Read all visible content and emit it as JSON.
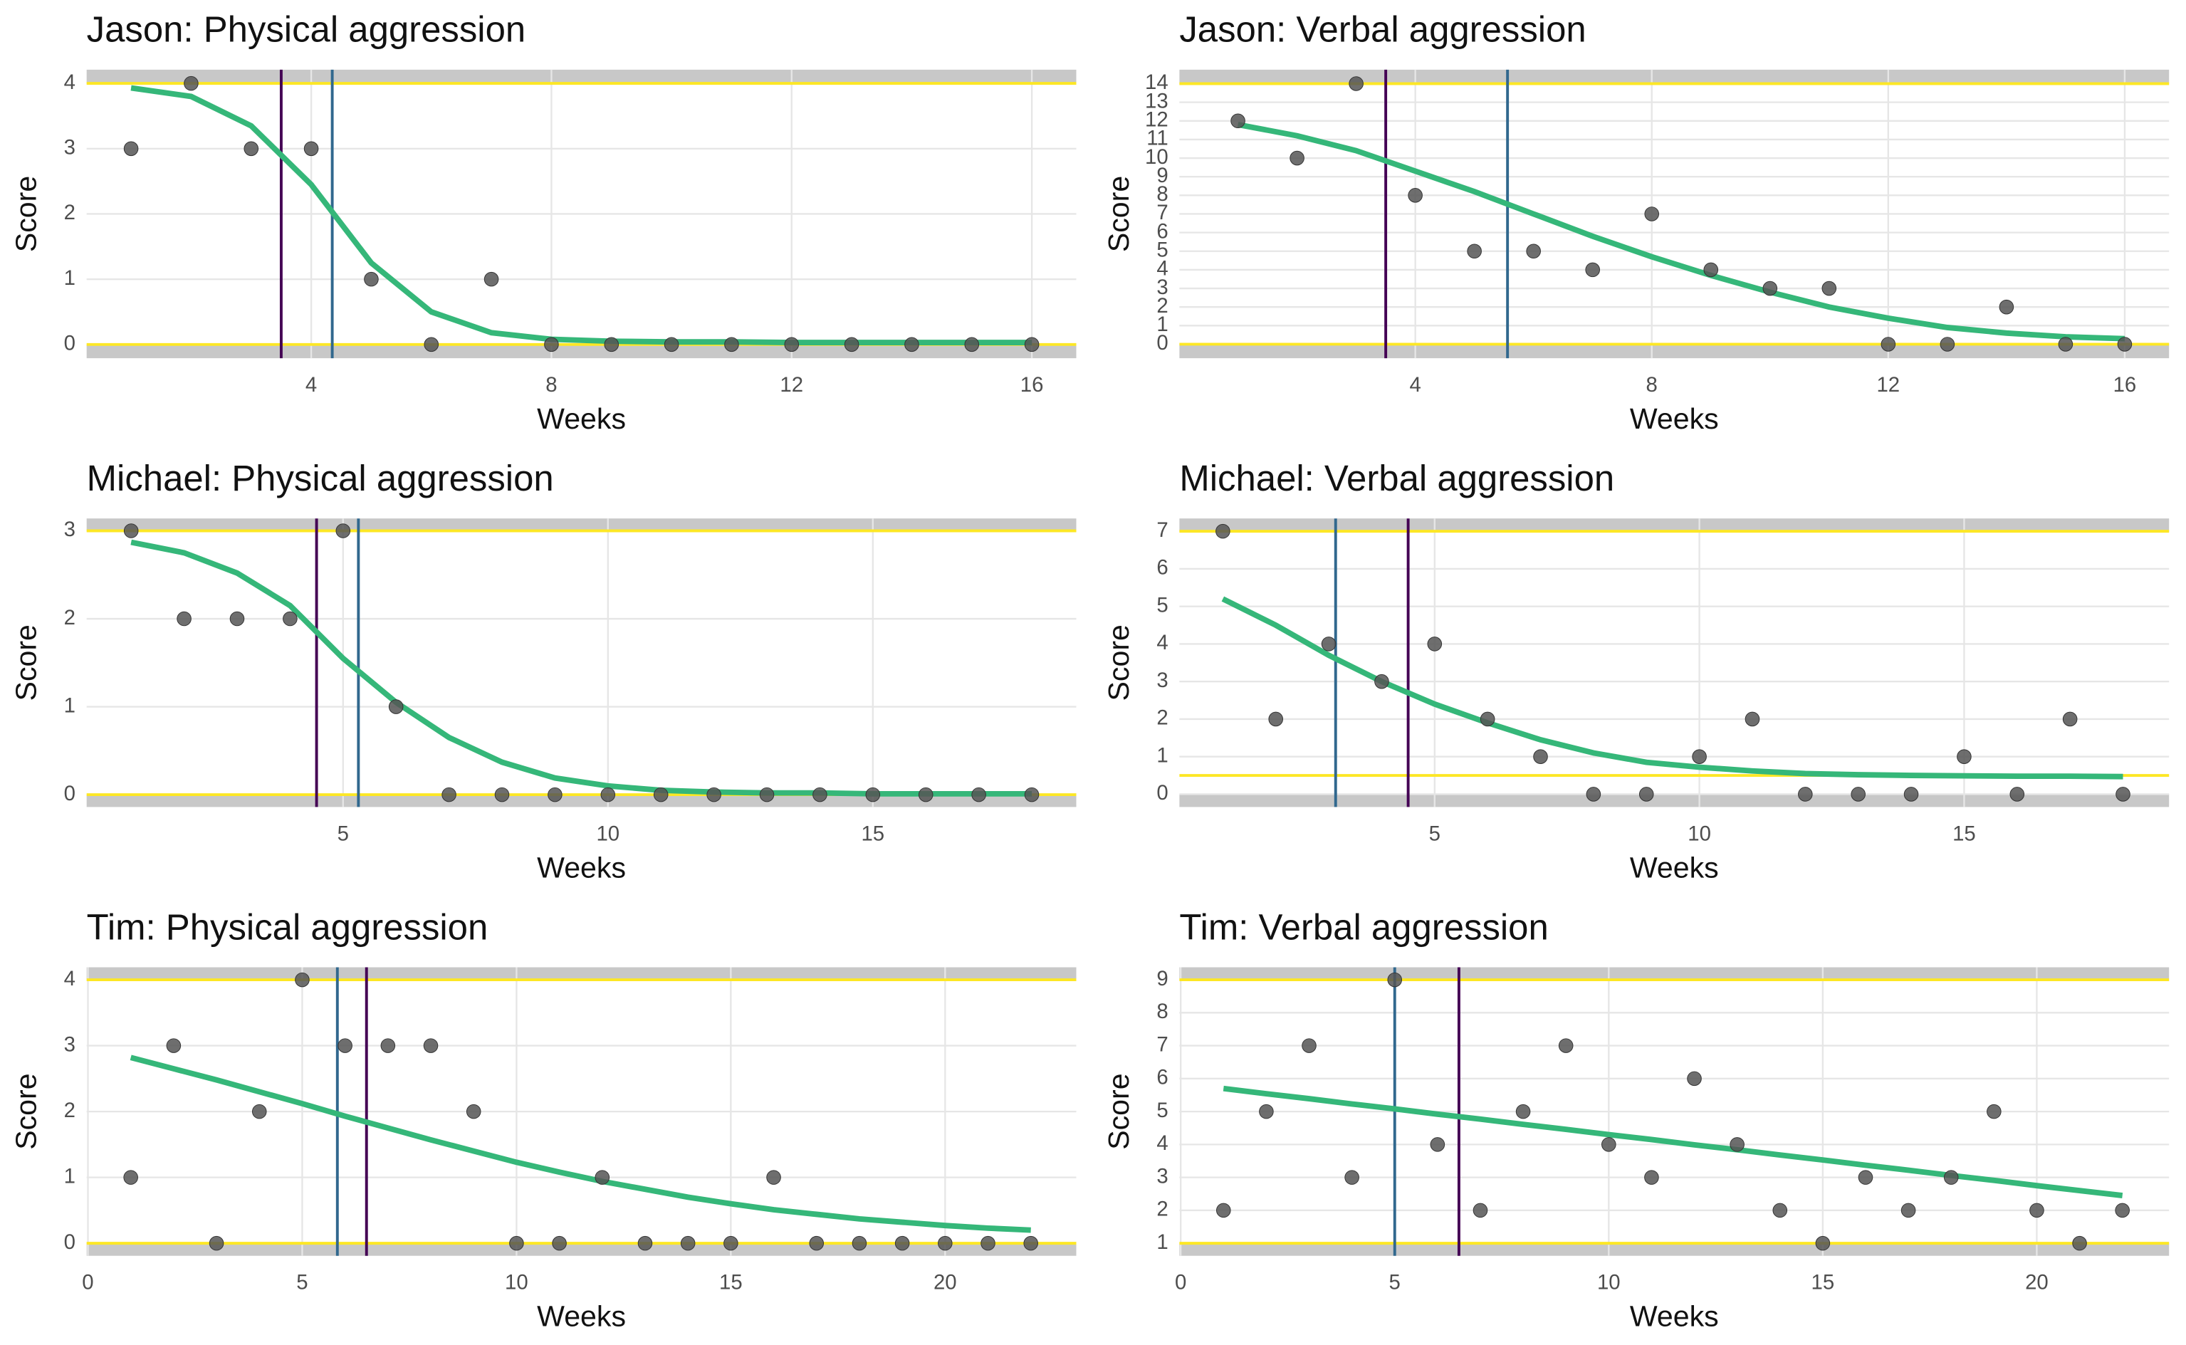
{
  "chart_data": [
    {
      "type": "scatter",
      "title": "Jason: Physical aggression",
      "xlabel": "Weeks",
      "ylabel": "Score",
      "xlim": [
        0.26,
        16.74
      ],
      "xticks": [
        4,
        8,
        12,
        16
      ],
      "ylim": [
        -0.21,
        4.21
      ],
      "yticks": [
        0,
        1,
        2,
        3,
        4
      ],
      "grid": true,
      "points": {
        "color": "#555555",
        "x": [
          1,
          2,
          3,
          4,
          5,
          6,
          7,
          8,
          9,
          10,
          11,
          12,
          13,
          14,
          15,
          16
        ],
        "values": [
          3,
          4,
          3,
          3,
          1,
          0,
          1,
          0,
          0,
          0,
          0,
          0,
          0,
          0,
          0,
          0
        ]
      },
      "fit": {
        "color": "#35b779",
        "x": [
          1,
          2,
          3,
          4,
          5,
          6,
          7,
          8,
          9,
          10,
          11,
          12,
          13,
          14,
          15,
          16
        ],
        "values": [
          3.93,
          3.8,
          3.35,
          2.45,
          1.25,
          0.5,
          0.18,
          0.08,
          0.05,
          0.04,
          0.04,
          0.03,
          0.03,
          0.03,
          0.03,
          0.03
        ]
      },
      "vlines": [
        {
          "x": 3.5,
          "color": "#440154"
        },
        {
          "x": 4.35,
          "color": "#31688e"
        }
      ],
      "hlines": [
        {
          "y": 4,
          "color": "#fde725"
        },
        {
          "y": 0,
          "color": "#fde725"
        }
      ],
      "bands": [
        [
          4,
          4.21
        ],
        [
          -0.21,
          0
        ]
      ]
    },
    {
      "type": "scatter",
      "title": "Jason: Verbal aggression",
      "xlabel": "Weeks",
      "ylabel": "Score",
      "xlim": [
        0.01,
        16.75
      ],
      "xticks": [
        4,
        8,
        12,
        16
      ],
      "ylim": [
        -0.75,
        14.75
      ],
      "yticks": [
        0,
        1,
        2,
        3,
        4,
        5,
        6,
        7,
        8,
        9,
        10,
        11,
        12,
        13,
        14
      ],
      "grid": true,
      "points": {
        "color": "#555555",
        "x": [
          1,
          2,
          3,
          4,
          5,
          6,
          7,
          8,
          9,
          10,
          11,
          12,
          13,
          14,
          15,
          16
        ],
        "values": [
          12,
          10,
          14,
          8,
          5,
          5,
          4,
          7,
          4,
          3,
          3,
          0,
          0,
          2,
          0,
          0
        ]
      },
      "fit": {
        "color": "#35b779",
        "x": [
          1,
          2,
          3,
          4,
          5,
          6,
          7,
          8,
          9,
          10,
          11,
          12,
          13,
          14,
          15,
          16
        ],
        "values": [
          11.8,
          11.2,
          10.4,
          9.3,
          8.2,
          7.0,
          5.8,
          4.7,
          3.7,
          2.8,
          2.0,
          1.4,
          0.9,
          0.6,
          0.4,
          0.3
        ]
      },
      "vlines": [
        {
          "x": 3.5,
          "color": "#440154"
        },
        {
          "x": 5.56,
          "color": "#31688e"
        }
      ],
      "hlines": [
        {
          "y": 14,
          "color": "#fde725"
        },
        {
          "y": 0,
          "color": "#fde725"
        }
      ],
      "bands": [
        [
          14,
          14.75
        ],
        [
          -0.75,
          0
        ]
      ]
    },
    {
      "type": "scatter",
      "title": "Michael: Physical aggression",
      "xlabel": "Weeks",
      "ylabel": "Score",
      "xlim": [
        0.16,
        18.84
      ],
      "xticks": [
        5,
        10,
        15
      ],
      "ylim": [
        -0.14,
        3.14
      ],
      "yticks": [
        0,
        1,
        2,
        3
      ],
      "grid": true,
      "points": {
        "color": "#555555",
        "x": [
          1,
          2,
          3,
          4,
          5,
          6,
          7,
          8,
          9,
          10,
          11,
          12,
          13,
          14,
          15,
          16,
          17,
          18
        ],
        "values": [
          3,
          2,
          2,
          2,
          3,
          1,
          0,
          0,
          0,
          0,
          0,
          0,
          0,
          0,
          0,
          0,
          0,
          0
        ]
      },
      "fit": {
        "color": "#35b779",
        "x": [
          1,
          2,
          3,
          4,
          5,
          6,
          7,
          8,
          9,
          10,
          11,
          12,
          13,
          14,
          15,
          16,
          17,
          18
        ],
        "values": [
          2.87,
          2.75,
          2.52,
          2.15,
          1.55,
          1.05,
          0.65,
          0.37,
          0.19,
          0.1,
          0.05,
          0.03,
          0.02,
          0.02,
          0.01,
          0.01,
          0.01,
          0.01
        ]
      },
      "vlines": [
        {
          "x": 4.5,
          "color": "#440154"
        },
        {
          "x": 5.29,
          "color": "#31688e"
        }
      ],
      "hlines": [
        {
          "y": 3,
          "color": "#fde725"
        },
        {
          "y": 0,
          "color": "#fde725"
        }
      ],
      "bands": [
        [
          3,
          3.14
        ],
        [
          -0.14,
          0
        ]
      ]
    },
    {
      "type": "scatter",
      "title": "Michael: Verbal aggression",
      "xlabel": "Weeks",
      "ylabel": "Score",
      "xlim": [
        0.18,
        18.87
      ],
      "xticks": [
        5,
        10,
        15
      ],
      "ylim": [
        -0.34,
        7.34
      ],
      "yticks": [
        0,
        1,
        2,
        3,
        4,
        5,
        6,
        7
      ],
      "grid": true,
      "points": {
        "color": "#555555",
        "x": [
          1,
          2,
          3,
          4,
          5,
          6,
          7,
          8,
          9,
          10,
          11,
          12,
          13,
          14,
          15,
          16,
          17,
          18
        ],
        "values": [
          7,
          2,
          4,
          3,
          4,
          2,
          1,
          0,
          0,
          1,
          2,
          0,
          0,
          0,
          1,
          0,
          2,
          0
        ]
      },
      "fit": {
        "color": "#35b779",
        "x": [
          1,
          2,
          3,
          4,
          5,
          6,
          7,
          8,
          9,
          10,
          11,
          12,
          13,
          14,
          15,
          16,
          17,
          18
        ],
        "values": [
          5.2,
          4.5,
          3.7,
          3.0,
          2.4,
          1.9,
          1.45,
          1.1,
          0.85,
          0.72,
          0.62,
          0.55,
          0.52,
          0.5,
          0.49,
          0.48,
          0.48,
          0.47
        ]
      },
      "vlines": [
        {
          "x": 3.13,
          "color": "#31688e"
        },
        {
          "x": 4.5,
          "color": "#440154"
        }
      ],
      "hlines": [
        {
          "y": 7,
          "color": "#fde725"
        },
        {
          "y": 0.5,
          "color": "#fde725"
        }
      ],
      "bands": [
        [
          7,
          7.34
        ],
        [
          -0.34,
          0
        ]
      ]
    },
    {
      "type": "scatter",
      "title": "Tim: Physical aggression",
      "xlabel": "Weeks",
      "ylabel": "Score",
      "xlim": [
        -0.03,
        23.06
      ],
      "xticks": [
        0,
        5,
        10,
        15,
        20
      ],
      "ylim": [
        -0.19,
        4.19
      ],
      "yticks": [
        0,
        1,
        2,
        3,
        4
      ],
      "grid": true,
      "points": {
        "color": "#555555",
        "x": [
          1,
          2,
          3,
          4,
          5,
          6,
          7,
          8,
          9,
          10,
          11,
          12,
          13,
          14,
          15,
          16,
          17,
          18,
          19,
          20,
          21,
          22
        ],
        "values": [
          1,
          3,
          0,
          2,
          4,
          3,
          3,
          3,
          2,
          0,
          0,
          1,
          0,
          0,
          0,
          1,
          0,
          0,
          0,
          0,
          0,
          0
        ]
      },
      "fit": {
        "color": "#35b779",
        "x": [
          1,
          2,
          3,
          4,
          5,
          6,
          7,
          8,
          9,
          10,
          11,
          12,
          13,
          14,
          15,
          16,
          17,
          18,
          19,
          20,
          21,
          22
        ],
        "values": [
          2.82,
          2.65,
          2.48,
          2.3,
          2.12,
          1.93,
          1.75,
          1.57,
          1.4,
          1.23,
          1.08,
          0.94,
          0.82,
          0.7,
          0.6,
          0.51,
          0.44,
          0.37,
          0.32,
          0.27,
          0.23,
          0.2
        ]
      },
      "vlines": [
        {
          "x": 5.82,
          "color": "#31688e"
        },
        {
          "x": 6.5,
          "color": "#440154"
        }
      ],
      "hlines": [
        {
          "y": 4,
          "color": "#fde725"
        },
        {
          "y": 0,
          "color": "#fde725"
        }
      ],
      "bands": [
        [
          4,
          4.19
        ],
        [
          -0.19,
          0
        ]
      ]
    },
    {
      "type": "scatter",
      "title": "Tim: Verbal aggression",
      "xlabel": "Weeks",
      "ylabel": "Score",
      "xlim": [
        -0.03,
        23.09
      ],
      "xticks": [
        0,
        5,
        10,
        15,
        20
      ],
      "ylim": [
        0.62,
        9.38
      ],
      "yticks": [
        1,
        2,
        3,
        4,
        5,
        6,
        7,
        8,
        9
      ],
      "grid": true,
      "points": {
        "color": "#555555",
        "x": [
          1,
          2,
          3,
          4,
          5,
          6,
          7,
          8,
          9,
          10,
          11,
          12,
          13,
          14,
          15,
          16,
          17,
          18,
          19,
          20,
          21,
          22
        ],
        "values": [
          2,
          5,
          7,
          3,
          9,
          4,
          2,
          5,
          7,
          4,
          3,
          6,
          4,
          2,
          1,
          3,
          2,
          3,
          5,
          2,
          1,
          2
        ]
      },
      "fit": {
        "color": "#35b779",
        "x": [
          1,
          2,
          3,
          4,
          5,
          6,
          7,
          8,
          9,
          10,
          11,
          12,
          13,
          14,
          15,
          16,
          17,
          18,
          19,
          20,
          21,
          22
        ],
        "values": [
          5.7,
          5.54,
          5.39,
          5.23,
          5.08,
          4.92,
          4.77,
          4.61,
          4.46,
          4.3,
          4.15,
          3.99,
          3.84,
          3.68,
          3.53,
          3.37,
          3.22,
          3.06,
          2.91,
          2.75,
          2.6,
          2.45
        ]
      },
      "vlines": [
        {
          "x": 5.0,
          "color": "#31688e"
        },
        {
          "x": 6.5,
          "color": "#440154"
        }
      ],
      "hlines": [
        {
          "y": 9,
          "color": "#fde725"
        },
        {
          "y": 1,
          "color": "#fde725"
        }
      ],
      "bands": [
        [
          9,
          9.38
        ],
        [
          0.62,
          1
        ]
      ]
    }
  ]
}
